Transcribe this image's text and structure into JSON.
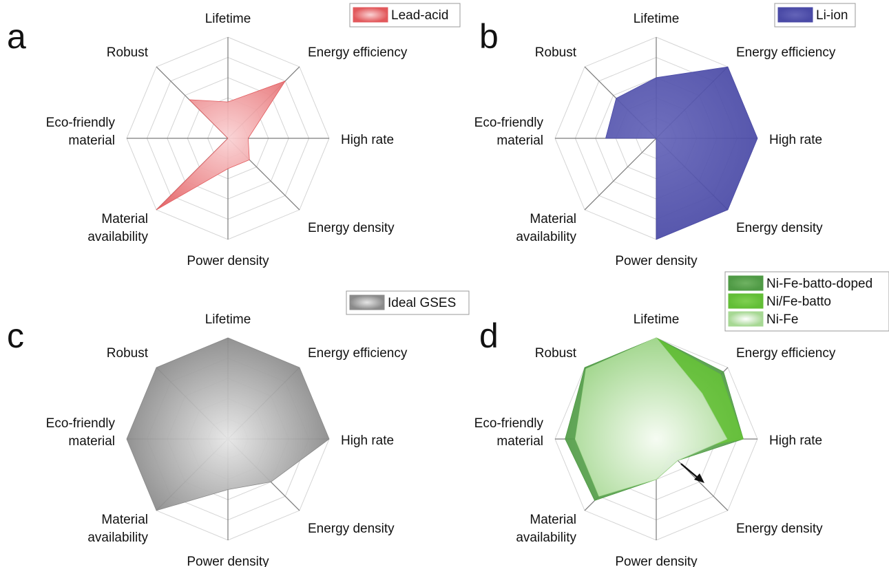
{
  "chart_data": [
    {
      "type": "radar",
      "panel_letter": "a",
      "axes": [
        "Lifetime",
        "Energy efficiency",
        "High rate",
        "Energy density",
        "Power density",
        "Material availability",
        "Eco-friendly material",
        "Robust"
      ],
      "axis_label_lines": [
        [
          "Lifetime"
        ],
        [
          "Energy efficiency"
        ],
        [
          "High rate"
        ],
        [
          "Energy density"
        ],
        [
          "Power density"
        ],
        [
          "Material",
          "availability"
        ],
        [
          "Eco-friendly",
          "material"
        ],
        [
          "Robust"
        ]
      ],
      "range": [
        0,
        5
      ],
      "grid_levels": 5,
      "legend_position": "top-right",
      "series": [
        {
          "name": "Lead-acid",
          "values": [
            1.8,
            4.0,
            1.0,
            1.5,
            1.5,
            5.0,
            0.0,
            2.7
          ],
          "color": "#e2595c",
          "center_color": "#fad2d4"
        }
      ]
    },
    {
      "type": "radar",
      "panel_letter": "b",
      "axes": [
        "Lifetime",
        "Energy efficiency",
        "High rate",
        "Energy density",
        "Power density",
        "Material availability",
        "Eco-friendly material",
        "Robust"
      ],
      "axis_label_lines": [
        [
          "Lifetime"
        ],
        [
          "Energy efficiency"
        ],
        [
          "High rate"
        ],
        [
          "Energy density"
        ],
        [
          "Power density"
        ],
        [
          "Material",
          "availability"
        ],
        [
          "Eco-friendly",
          "material"
        ],
        [
          "Robust"
        ]
      ],
      "range": [
        0,
        5
      ],
      "grid_levels": 5,
      "legend_position": "top-right",
      "series": [
        {
          "name": "Li-ion",
          "values": [
            3.0,
            5.0,
            5.0,
            5.0,
            5.0,
            0.0,
            2.5,
            2.8
          ],
          "color": "#4a4aa6",
          "center_color": "#6464b8"
        }
      ]
    },
    {
      "type": "radar",
      "panel_letter": "c",
      "axes": [
        "Lifetime",
        "Energy efficiency",
        "High rate",
        "Energy density",
        "Power density",
        "Material availability",
        "Eco-friendly material",
        "Robust"
      ],
      "axis_label_lines": [
        [
          "Lifetime"
        ],
        [
          "Energy efficiency"
        ],
        [
          "High rate"
        ],
        [
          "Energy density"
        ],
        [
          "Power density"
        ],
        [
          "Material",
          "availability"
        ],
        [
          "Eco-friendly",
          "material"
        ],
        [
          "Robust"
        ]
      ],
      "range": [
        0,
        5
      ],
      "grid_levels": 5,
      "legend_position": "top-right",
      "series": [
        {
          "name": "Ideal GSES",
          "values": [
            5.0,
            5.0,
            5.0,
            3.0,
            2.5,
            5.0,
            5.0,
            5.0
          ],
          "color": "#8a8a8a",
          "center_color": "#e6e6e6"
        }
      ]
    },
    {
      "type": "radar",
      "panel_letter": "d",
      "axes": [
        "Lifetime",
        "Energy efficiency",
        "High rate",
        "Energy density",
        "Power density",
        "Material availability",
        "Eco-friendly material",
        "Robust"
      ],
      "axis_label_lines": [
        [
          "Lifetime"
        ],
        [
          "Energy efficiency"
        ],
        [
          "High rate"
        ],
        [
          "Energy density"
        ],
        [
          "Power density"
        ],
        [
          "Material",
          "availability"
        ],
        [
          "Eco-friendly",
          "material"
        ],
        [
          "Robust"
        ]
      ],
      "range": [
        0,
        5
      ],
      "grid_levels": 5,
      "legend_position": "top-right",
      "series": [
        {
          "name": "Ni-Fe-batto-doped",
          "values": [
            5.0,
            4.7,
            4.3,
            1.5,
            2.0,
            4.3,
            4.5,
            5.0
          ],
          "color": "#4f9a45",
          "center_color": "#6fb262"
        },
        {
          "name": "Ni/Fe-batto",
          "values": [
            5.0,
            4.5,
            4.3,
            1.0,
            2.0,
            4.0,
            4.0,
            4.9
          ],
          "color": "#62be36",
          "center_color": "#7fd051"
        },
        {
          "name": "Ni-Fe",
          "values": [
            5.0,
            3.2,
            3.5,
            1.5,
            2.0,
            4.0,
            4.0,
            4.9
          ],
          "color": "#a6d893",
          "center_color": "#ffffff"
        }
      ],
      "annotation": "arrow"
    }
  ]
}
